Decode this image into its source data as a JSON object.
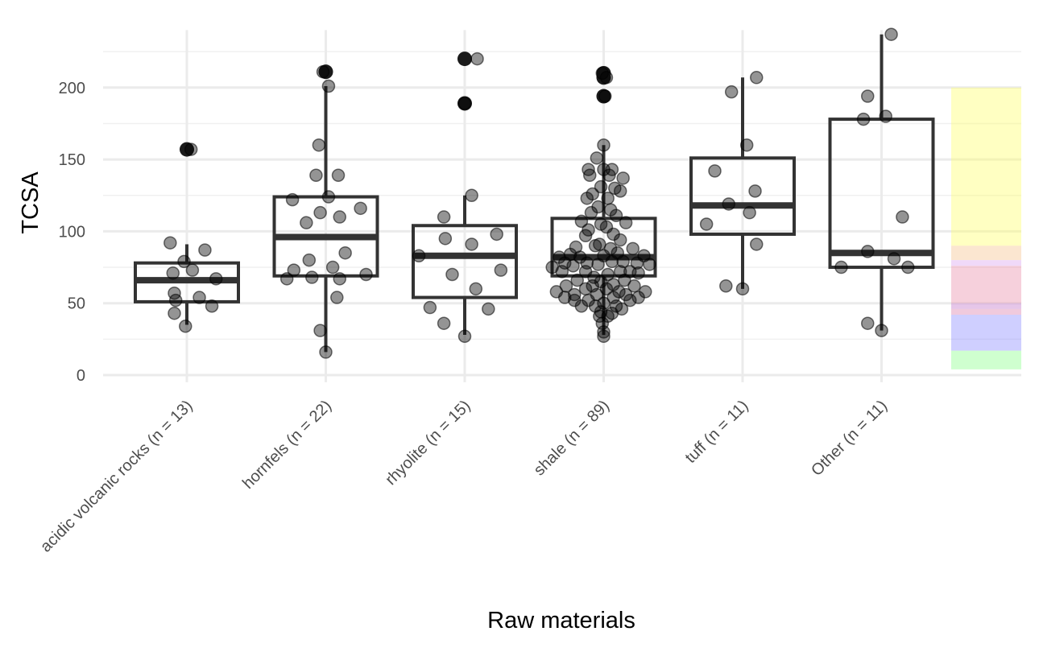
{
  "chart_data": {
    "type": "boxplot",
    "title": "",
    "xlabel": "Raw materials",
    "ylabel": "TCSA",
    "ylim": [
      -5,
      240
    ],
    "yticks": [
      0,
      50,
      100,
      150,
      200
    ],
    "grid": true,
    "categories": [
      "acidic volcanic rocks (n = 13)",
      "hornfels (n = 22)",
      "rhyolite (n = 15)",
      "shale (n = 89)",
      "tuff (n = 11)",
      "Other (n = 11)"
    ],
    "boxes": [
      {
        "q1": 51,
        "median": 66,
        "q3": 78,
        "whisker_low": 35,
        "whisker_high": 91,
        "outliers": [
          157
        ]
      },
      {
        "q1": 69,
        "median": 96,
        "q3": 124,
        "whisker_low": 16,
        "whisker_high": 201,
        "outliers": [
          211
        ]
      },
      {
        "q1": 54,
        "median": 83,
        "q3": 104,
        "whisker_low": 28,
        "whisker_high": 125,
        "outliers": [
          189,
          220
        ]
      },
      {
        "q1": 69,
        "median": 82,
        "q3": 109,
        "whisker_low": 28,
        "whisker_high": 160,
        "outliers": [
          194,
          207,
          210
        ]
      },
      {
        "q1": 98,
        "median": 118,
        "q3": 151,
        "whisker_low": 60,
        "whisker_high": 207,
        "outliers": []
      },
      {
        "q1": 75,
        "median": 85,
        "q3": 178,
        "whisker_low": 31,
        "whisker_high": 237,
        "outliers": []
      }
    ],
    "points": [
      [
        [
          -0.12,
          92
        ],
        [
          -0.1,
          71
        ],
        [
          0.13,
          87
        ],
        [
          -0.02,
          79
        ],
        [
          0.04,
          73
        ],
        [
          0.21,
          67
        ],
        [
          -0.08,
          52
        ],
        [
          0.09,
          54
        ],
        [
          -0.09,
          43
        ],
        [
          0.18,
          48
        ],
        [
          -0.01,
          34
        ],
        [
          -0.09,
          57
        ],
        [
          0.03,
          157
        ]
      ],
      [
        [
          -0.02,
          211
        ],
        [
          0.02,
          201
        ],
        [
          -0.05,
          160
        ],
        [
          -0.07,
          139
        ],
        [
          0.09,
          139
        ],
        [
          0.02,
          124
        ],
        [
          -0.24,
          122
        ],
        [
          0.25,
          116
        ],
        [
          -0.14,
          106
        ],
        [
          -0.04,
          113
        ],
        [
          0.1,
          110
        ],
        [
          0.14,
          85
        ],
        [
          -0.12,
          80
        ],
        [
          0.05,
          75
        ],
        [
          -0.23,
          73
        ],
        [
          0.29,
          70
        ],
        [
          -0.28,
          67
        ],
        [
          -0.1,
          68
        ],
        [
          0.1,
          67
        ],
        [
          0.08,
          54
        ],
        [
          -0.04,
          31
        ],
        [
          0.0,
          16
        ]
      ],
      [
        [
          0.09,
          220
        ],
        [
          0.0,
          189
        ],
        [
          0.05,
          125
        ],
        [
          -0.15,
          110
        ],
        [
          0.23,
          98
        ],
        [
          -0.14,
          95
        ],
        [
          0.05,
          91
        ],
        [
          -0.33,
          83
        ],
        [
          0.26,
          73
        ],
        [
          -0.09,
          70
        ],
        [
          0.08,
          60
        ],
        [
          -0.25,
          47
        ],
        [
          0.17,
          46
        ],
        [
          -0.15,
          36
        ],
        [
          0.0,
          27
        ]
      ],
      [
        [
          -0.01,
          210
        ],
        [
          0.02,
          207
        ],
        [
          0.01,
          194
        ],
        [
          0.0,
          160
        ],
        [
          -0.05,
          151
        ],
        [
          -0.11,
          143
        ],
        [
          0.0,
          143
        ],
        [
          0.06,
          143
        ],
        [
          -0.1,
          139
        ],
        [
          0.04,
          139
        ],
        [
          0.14,
          137
        ],
        [
          -0.02,
          131
        ],
        [
          0.08,
          130
        ],
        [
          -0.08,
          126
        ],
        [
          0.12,
          128
        ],
        [
          -0.12,
          123
        ],
        [
          0.03,
          123
        ],
        [
          -0.04,
          117
        ],
        [
          0.05,
          115
        ],
        [
          -0.09,
          113
        ],
        [
          0.09,
          111
        ],
        [
          -0.16,
          107
        ],
        [
          -0.02,
          105
        ],
        [
          0.02,
          103
        ],
        [
          0.16,
          106
        ],
        [
          -0.11,
          101
        ],
        [
          0.07,
          98
        ],
        [
          -0.13,
          97
        ],
        [
          0.12,
          94
        ],
        [
          -0.03,
          91
        ],
        [
          -0.2,
          89
        ],
        [
          -0.06,
          90
        ],
        [
          0.05,
          88
        ],
        [
          0.21,
          88
        ],
        [
          -0.24,
          84
        ],
        [
          0.1,
          85
        ],
        [
          -0.32,
          82
        ],
        [
          -0.17,
          82
        ],
        [
          0.0,
          83
        ],
        [
          0.29,
          83
        ],
        [
          -0.28,
          78
        ],
        [
          -0.12,
          78
        ],
        [
          0.14,
          79
        ],
        [
          0.33,
          77
        ],
        [
          -0.37,
          75
        ],
        [
          -0.22,
          76
        ],
        [
          -0.04,
          77
        ],
        [
          0.06,
          79
        ],
        [
          0.24,
          78
        ],
        [
          -0.3,
          72
        ],
        [
          0.19,
          72
        ],
        [
          -0.13,
          72
        ],
        [
          0.03,
          70
        ],
        [
          0.12,
          72
        ],
        [
          -0.07,
          68
        ],
        [
          0.25,
          71
        ],
        [
          -0.19,
          66
        ],
        [
          0.15,
          66
        ],
        [
          -0.02,
          65
        ],
        [
          -0.27,
          62
        ],
        [
          0.07,
          63
        ],
        [
          0.22,
          62
        ],
        [
          -0.13,
          60
        ],
        [
          0.02,
          60
        ],
        [
          0.11,
          58
        ],
        [
          -0.34,
          58
        ],
        [
          0.3,
          58
        ],
        [
          -0.21,
          56
        ],
        [
          -0.05,
          56
        ],
        [
          0.16,
          56
        ],
        [
          -0.28,
          54
        ],
        [
          0.07,
          54
        ],
        [
          0.25,
          54
        ],
        [
          -0.11,
          52
        ],
        [
          -0.21,
          52
        ],
        [
          0.0,
          50
        ],
        [
          0.19,
          52
        ],
        [
          -0.16,
          48
        ],
        [
          0.09,
          48
        ],
        [
          -0.06,
          48
        ],
        [
          0.13,
          46
        ],
        [
          -0.02,
          44
        ],
        [
          0.06,
          43
        ],
        [
          -0.03,
          41
        ],
        [
          0.03,
          41
        ],
        [
          -0.01,
          36
        ],
        [
          0.0,
          30
        ],
        [
          0.0,
          27
        ],
        [
          -0.08,
          62
        ]
      ],
      [
        [
          0.1,
          207
        ],
        [
          -0.08,
          197
        ],
        [
          0.03,
          160
        ],
        [
          -0.2,
          142
        ],
        [
          0.09,
          128
        ],
        [
          -0.1,
          119
        ],
        [
          0.05,
          113
        ],
        [
          -0.26,
          105
        ],
        [
          0.1,
          91
        ],
        [
          -0.12,
          62
        ],
        [
          0.0,
          60
        ]
      ],
      [
        [
          0.07,
          237
        ],
        [
          -0.1,
          194
        ],
        [
          -0.13,
          178
        ],
        [
          0.03,
          180
        ],
        [
          0.15,
          110
        ],
        [
          -0.1,
          86
        ],
        [
          0.09,
          81
        ],
        [
          -0.29,
          75
        ],
        [
          0.19,
          75
        ],
        [
          -0.1,
          36
        ],
        [
          0.0,
          31
        ]
      ]
    ],
    "legend_strips": [
      {
        "y0": 90,
        "y1": 200,
        "color": "#ffff66"
      },
      {
        "y0": 80,
        "y1": 90,
        "color": "#f5c18a"
      },
      {
        "y0": 76,
        "y1": 80,
        "color": "#d9a0f0"
      },
      {
        "y0": 50,
        "y1": 76,
        "color": "#e88aa8"
      },
      {
        "y0": 46,
        "y1": 50,
        "color": "#c070c8"
      },
      {
        "y0": 42,
        "y1": 46,
        "color": "#d97aaa"
      },
      {
        "y0": 17,
        "y1": 42,
        "color": "#8888ff"
      },
      {
        "y0": 4,
        "y1": 17,
        "color": "#88ff88"
      }
    ],
    "legend_placement": "right"
  }
}
